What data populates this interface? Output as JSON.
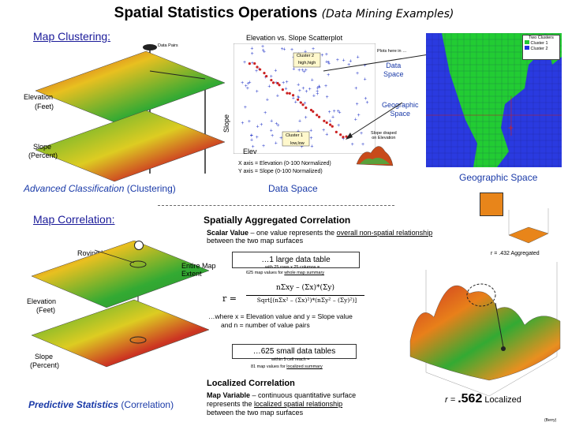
{
  "title": {
    "main": "Spatial Statistics Operations",
    "sub": "(Data Mining Examples)"
  },
  "clustering": {
    "heading": "Map Clustering:",
    "data_pairs": "Data Pairs",
    "elevation": "Elevation",
    "elevation_unit": "(Feet)",
    "slope": "Slope",
    "slope_unit": "(Percent)",
    "scatter_title": "Elevation vs. Slope Scatterplot",
    "slope_axis": "Slope",
    "elev_axis": "Elev",
    "cluster2": "Cluster 2",
    "cluster2_sub": "high,high",
    "cluster1": "Cluster 1",
    "cluster1_sub": "low,low",
    "plots_here": "Plots here in …",
    "data_space_callout": "Data\nSpace",
    "geo_space_callout": "Geographic\nSpace",
    "slope_draped": "Slope draped\non Elevation",
    "xaxis_note": "X axis = Elevation (0-100 Normalized)",
    "yaxis_note": "Y axis = Slope (0-100 Normalized)",
    "advanced": "Advanced Classification",
    "advanced_paren": "(Clustering)",
    "data_space_label": "Data Space",
    "geo_space_label": "Geographic Space",
    "legend_title": "Two Clusters",
    "legend_c1": "Cluster 1",
    "legend_c2": "Cluster 2"
  },
  "correlation": {
    "heading": "Map Correlation:",
    "spatial_agg": "Spatially Aggregated Correlation",
    "scalar_bold": "Scalar Value",
    "scalar_text": " – one value represents the ",
    "scalar_u": "overall non-spatial relationship",
    "scalar_text2": "between the two map surfaces",
    "roving": "Roving Window",
    "entire_map": "Entire Map\nExtent",
    "large_table": "…1 large data table",
    "large_detail1": "with 25 rows x 25 columns =",
    "large_detail2": "625 map values for ",
    "large_detail2_u": "whole map summary",
    "r_agg": "r = .432 Aggregated",
    "r_eq_lhs": "r =",
    "formula_top": "nΣxy – (Σx)*(Σy)",
    "formula_bot": "Sqrt[(nΣx² – (Σx)²)*(nΣy² – (Σy)²)]",
    "where1": "…where x = Elevation value and y = Slope value",
    "where2": "and n = number of value pairs",
    "elevation": "Elevation",
    "elevation_unit": "(Feet)",
    "slope": "Slope",
    "slope_unit": "(Percent)",
    "small_tables": "…625 small data tables",
    "small_detail1": "within 5 cell reach =",
    "small_detail2": "81 map values for ",
    "small_detail2_u": "localized summary",
    "localized": "Localized Correlation",
    "mapvar_bold": "Map Variable",
    "mapvar_text": " – continuous quantitative surface",
    "mapvar_text2": "represents the ",
    "mapvar_u": "localized spatial relationship",
    "mapvar_text3": "between the two map surfaces",
    "predictive": "Predictive Statistics",
    "predictive_paren": "(Correlation)",
    "r_local_prefix": "r = ",
    "r_local_val": ".562",
    "r_local_suffix": " Localized",
    "berry": "(Berry)"
  },
  "colors": {
    "blue": "#1a3aa8",
    "cluster1": "#22cc33",
    "cluster2": "#2233dd",
    "red": "#cc2222"
  }
}
